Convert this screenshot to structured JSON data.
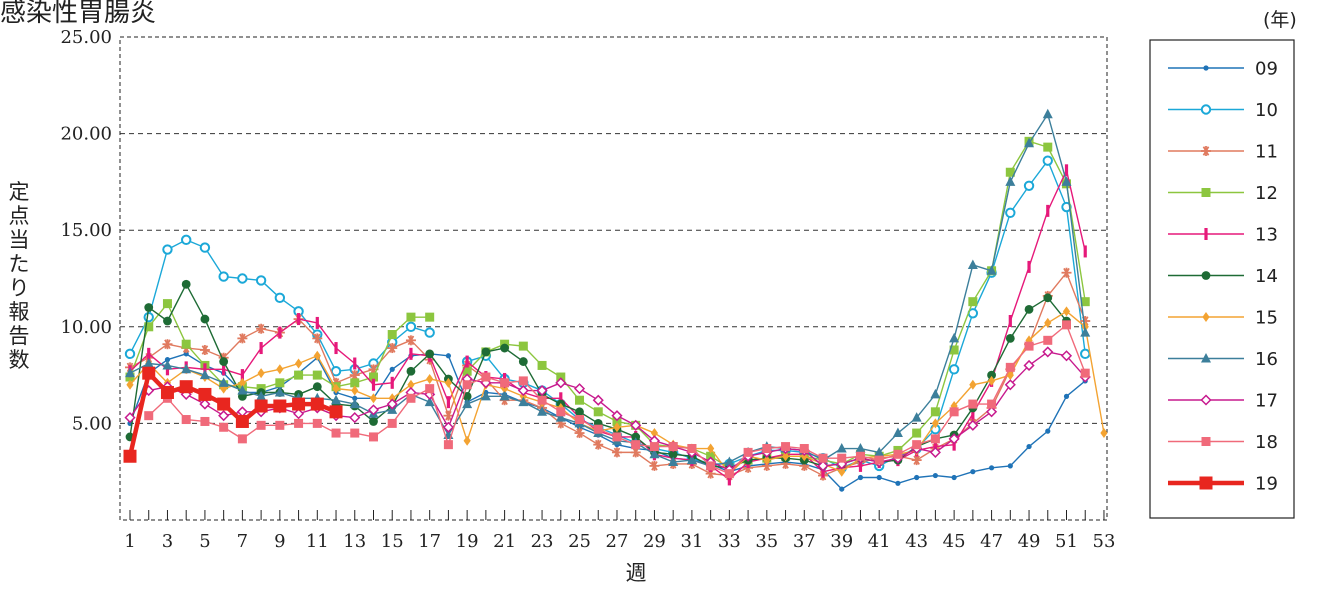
{
  "chart_data": {
    "type": "line",
    "title": "感染性胃腸炎",
    "xlabel": "週",
    "ylabel": "定点当たり報告数",
    "legend_unit": "(年)",
    "legend_position": "right",
    "grid": "horizontal-dashed",
    "xlim": [
      1,
      53
    ],
    "ylim": [
      0,
      25
    ],
    "y_ticks": [
      "5.00",
      "10.00",
      "15.00",
      "20.00",
      "25.00"
    ],
    "x_tick_labels": [
      "1",
      "3",
      "5",
      "7",
      "9",
      "11",
      "13",
      "15",
      "17",
      "19",
      "21",
      "23",
      "25",
      "27",
      "29",
      "31",
      "33",
      "35",
      "37",
      "39",
      "41",
      "43",
      "45",
      "47",
      "49",
      "51",
      "53"
    ],
    "series": [
      {
        "name": "09",
        "color": "#1f73b7",
        "marker": "dot",
        "values": [
          5.0,
          7.6,
          8.3,
          8.6,
          8.0,
          7.6,
          6.6,
          6.6,
          6.9,
          7.6,
          8.4,
          6.6,
          6.3,
          6.3,
          7.8,
          8.5,
          8.6,
          8.5,
          6.1,
          6.6,
          6.5,
          6.1,
          5.8,
          5.3,
          4.8,
          4.4,
          3.9,
          3.7,
          3.6,
          3.2,
          3.1,
          2.9,
          2.5,
          2.8,
          2.9,
          3.0,
          2.9,
          2.6,
          1.6,
          2.2,
          2.2,
          1.9,
          2.2,
          2.3,
          2.2,
          2.5,
          2.7,
          2.8,
          3.8,
          4.6,
          6.4,
          7.2,
          null
        ]
      },
      {
        "name": "10",
        "color": "#1ba8d8",
        "marker": "ring",
        "values": [
          8.6,
          10.5,
          14.0,
          14.5,
          14.1,
          12.6,
          12.5,
          12.4,
          11.5,
          10.8,
          9.6,
          7.7,
          7.8,
          8.1,
          9.2,
          10.0,
          9.7,
          null,
          8.2,
          8.5,
          7.3,
          7.1,
          6.7,
          6.0,
          5.2,
          4.8,
          4.4,
          4.0,
          3.7,
          3.5,
          3.2,
          2.9,
          2.9,
          3.3,
          3.6,
          3.6,
          3.5,
          3.2,
          2.7,
          3.1,
          2.8,
          3.3,
          3.7,
          4.7,
          7.8,
          10.7,
          12.8,
          15.9,
          17.3,
          18.6,
          16.2,
          8.6,
          null
        ]
      },
      {
        "name": "11",
        "color": "#e07a5f",
        "marker": "asterisk",
        "values": [
          7.9,
          8.4,
          9.1,
          8.9,
          8.8,
          8.4,
          9.4,
          9.9,
          9.7,
          10.4,
          9.4,
          7.1,
          7.5,
          7.8,
          8.9,
          9.3,
          8.3,
          5.4,
          8.0,
          7.3,
          6.2,
          6.2,
          5.8,
          5.0,
          4.5,
          3.9,
          3.5,
          3.5,
          2.8,
          2.9,
          2.9,
          2.4,
          2.3,
          2.7,
          2.8,
          2.9,
          2.8,
          2.3,
          2.7,
          3.0,
          3.2,
          3.3,
          3.1,
          3.7,
          4.2,
          5.0,
          5.8,
          7.8,
          9.1,
          11.6,
          12.8,
          10.3,
          null
        ]
      },
      {
        "name": "12",
        "color": "#8cc63f",
        "marker": "square",
        "values": [
          7.4,
          10.0,
          11.2,
          9.1,
          8.0,
          7.0,
          6.9,
          6.8,
          7.1,
          7.5,
          7.5,
          6.9,
          7.1,
          7.4,
          9.6,
          10.5,
          10.5,
          null,
          7.7,
          8.7,
          9.1,
          9.0,
          8.0,
          7.4,
          6.2,
          5.6,
          5.1,
          4.9,
          3.9,
          3.8,
          3.7,
          3.3,
          2.7,
          3.1,
          3.2,
          3.3,
          3.3,
          3.1,
          2.9,
          3.4,
          3.3,
          3.6,
          4.5,
          5.6,
          8.8,
          11.3,
          12.9,
          18.0,
          19.6,
          19.3,
          17.4,
          11.3,
          null
        ]
      },
      {
        "name": "13",
        "color": "#e6197a",
        "marker": "bar",
        "values": [
          7.7,
          8.6,
          7.8,
          7.9,
          7.8,
          7.8,
          7.5,
          8.9,
          9.7,
          10.4,
          10.2,
          8.9,
          8.1,
          7.0,
          7.1,
          8.6,
          8.5,
          6.1,
          8.2,
          7.4,
          7.3,
          6.6,
          6.3,
          6.3,
          5.3,
          4.6,
          4.3,
          4.3,
          3.4,
          3.2,
          3.1,
          2.8,
          2.1,
          3.0,
          3.2,
          3.4,
          3.4,
          2.5,
          2.7,
          2.8,
          3.0,
          3.1,
          3.6,
          3.8,
          3.9,
          5.5,
          7.2,
          10.3,
          13.1,
          16.0,
          18.1,
          13.9,
          null
        ]
      },
      {
        "name": "14",
        "color": "#1e6b35",
        "marker": "dot-lg",
        "values": [
          4.3,
          11.0,
          10.3,
          12.2,
          10.4,
          8.2,
          6.4,
          6.6,
          6.6,
          6.5,
          6.9,
          6.0,
          5.9,
          5.1,
          5.9,
          7.7,
          8.6,
          7.3,
          6.4,
          8.7,
          8.9,
          8.2,
          6.5,
          6.0,
          5.6,
          5.0,
          4.7,
          4.3,
          3.5,
          3.4,
          3.3,
          2.8,
          2.7,
          3.1,
          3.2,
          3.2,
          3.1,
          2.8,
          2.9,
          3.2,
          3.0,
          3.1,
          3.8,
          4.2,
          4.4,
          5.8,
          7.5,
          9.4,
          10.9,
          11.5,
          10.3,
          null,
          null
        ]
      },
      {
        "name": "15",
        "color": "#f3a332",
        "marker": "diamond",
        "values": [
          7.0,
          8.1,
          7.1,
          7.8,
          7.4,
          6.8,
          7.1,
          7.6,
          7.8,
          8.1,
          8.5,
          6.8,
          6.7,
          6.3,
          6.3,
          7.0,
          7.3,
          7.1,
          4.1,
          7.0,
          6.8,
          6.4,
          6.1,
          5.8,
          5.0,
          4.6,
          4.8,
          4.9,
          4.5,
          3.9,
          3.7,
          3.7,
          2.4,
          3.3,
          3.1,
          3.3,
          3.3,
          2.9,
          2.5,
          3.2,
          3.3,
          3.4,
          3.6,
          5.0,
          5.9,
          7.0,
          7.2,
          7.5,
          9.3,
          10.2,
          10.8,
          10.0,
          4.5
        ]
      },
      {
        "name": "16",
        "color": "#3c7f9b",
        "marker": "triangle",
        "values": [
          7.6,
          8.1,
          8.0,
          7.8,
          7.5,
          7.1,
          6.7,
          6.4,
          6.6,
          6.3,
          6.3,
          6.2,
          6.0,
          5.5,
          5.7,
          6.5,
          6.1,
          4.4,
          6.0,
          6.4,
          6.4,
          6.1,
          5.6,
          5.3,
          5.0,
          4.5,
          4.1,
          4.0,
          3.4,
          3.0,
          3.1,
          2.8,
          3.0,
          3.5,
          3.8,
          3.7,
          3.6,
          3.1,
          3.7,
          3.7,
          3.5,
          4.5,
          5.3,
          6.5,
          9.4,
          13.2,
          12.9,
          17.5,
          19.5,
          21.0,
          17.5,
          9.7,
          null
        ]
      },
      {
        "name": "17",
        "color": "#c71a8e",
        "marker": "diamond-open",
        "values": [
          5.3,
          6.7,
          6.9,
          6.5,
          6.0,
          5.4,
          5.6,
          5.6,
          5.8,
          5.5,
          5.8,
          5.4,
          5.3,
          5.7,
          6.0,
          6.6,
          6.5,
          4.8,
          7.3,
          7.1,
          7.1,
          6.7,
          6.7,
          7.1,
          6.8,
          6.2,
          5.4,
          4.9,
          4.1,
          3.8,
          3.5,
          3.0,
          2.6,
          3.3,
          3.5,
          3.7,
          3.6,
          2.8,
          2.9,
          3.2,
          3.0,
          3.2,
          3.7,
          3.5,
          4.2,
          4.9,
          5.6,
          7.0,
          8.0,
          8.7,
          8.5,
          7.4,
          null
        ]
      },
      {
        "name": "18",
        "color": "#f06a7a",
        "marker": "square",
        "values": [
          null,
          5.4,
          6.3,
          5.2,
          5.1,
          4.8,
          4.2,
          4.9,
          4.9,
          5.0,
          5.0,
          4.5,
          4.5,
          4.3,
          5.0,
          6.3,
          6.8,
          3.9,
          7.0,
          7.4,
          7.1,
          7.2,
          6.2,
          5.6,
          5.2,
          4.7,
          4.3,
          3.9,
          3.8,
          3.8,
          3.7,
          2.8,
          2.4,
          3.5,
          3.7,
          3.8,
          3.7,
          3.2,
          3.2,
          3.3,
          3.1,
          3.4,
          3.9,
          4.2,
          5.6,
          6.0,
          6.0,
          7.9,
          9.0,
          9.3,
          10.1,
          7.6,
          null
        ]
      },
      {
        "name": "19",
        "color": "#e8261f",
        "marker": "square-lg",
        "bold": true,
        "values": [
          3.3,
          7.6,
          6.6,
          6.9,
          6.5,
          6.0,
          5.1,
          5.9,
          5.9,
          6.0,
          6.0,
          5.6,
          null,
          null,
          null,
          null,
          null,
          null,
          null,
          null,
          null,
          null,
          null,
          null,
          null,
          null,
          null,
          null,
          null,
          null,
          null,
          null,
          null,
          null,
          null,
          null,
          null,
          null,
          null,
          null,
          null,
          null,
          null,
          null,
          null,
          null,
          null,
          null,
          null,
          null,
          null,
          null,
          null
        ]
      }
    ]
  }
}
